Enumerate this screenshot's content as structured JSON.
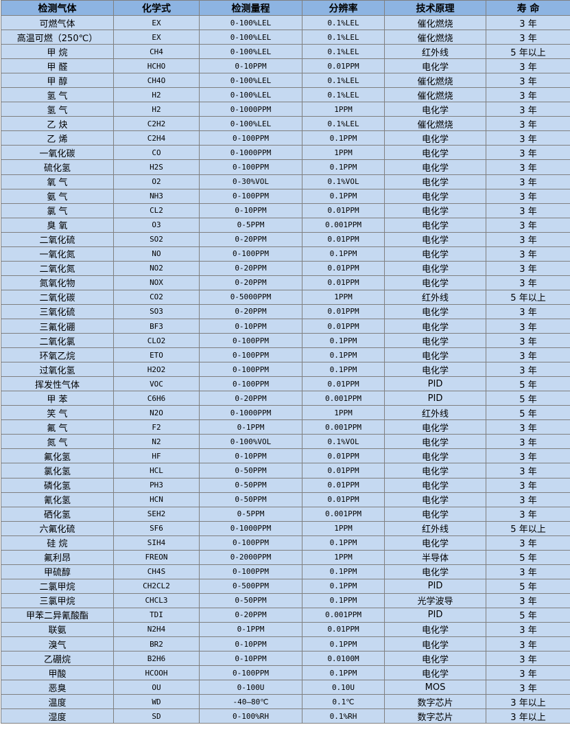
{
  "colors": {
    "header_bg": "#8db4e2",
    "row_bg": "#c5d9f1",
    "border": "#7f7f7f"
  },
  "headers": [
    "检测气体",
    "化学式",
    "检测量程",
    "分辨率",
    "技术原理",
    "寿 命"
  ],
  "rows": [
    [
      "可燃气体",
      "EX",
      "0-100%LEL",
      "0.1%LEL",
      "催化燃烧",
      "3 年"
    ],
    [
      "高温可燃（250℃）",
      "EX",
      "0-100%LEL",
      "0.1%LEL",
      "催化燃烧",
      "3 年"
    ],
    [
      "甲 烷",
      "CH4",
      "0-100%LEL",
      "0.1%LEL",
      "红外线",
      "5 年以上"
    ],
    [
      "甲 醛",
      "HCHO",
      "0-10PPM",
      "0.01PPM",
      "电化学",
      "3 年"
    ],
    [
      "甲 醇",
      "CH4O",
      "0-100%LEL",
      "0.1%LEL",
      "催化燃烧",
      "3 年"
    ],
    [
      "氢 气",
      "H2",
      "0-100%LEL",
      "0.1%LEL",
      "催化燃烧",
      "3 年"
    ],
    [
      "氢 气",
      "H2",
      "0-1000PPM",
      "1PPM",
      "电化学",
      "3 年"
    ],
    [
      "乙 炔",
      "C2H2",
      "0-100%LEL",
      "0.1%LEL",
      "催化燃烧",
      "3 年"
    ],
    [
      "乙 烯",
      "C2H4",
      "0-100PPM",
      "0.1PPM",
      "电化学",
      "3 年"
    ],
    [
      "一氧化碳",
      "CO",
      "0-1000PPM",
      "1PPM",
      "电化学",
      "3 年"
    ],
    [
      "硫化氢",
      "H2S",
      "0-100PPM",
      "0.1PPM",
      "电化学",
      "3 年"
    ],
    [
      "氧 气",
      "O2",
      "0-30%VOL",
      "0.1%VOL",
      "电化学",
      "3 年"
    ],
    [
      "氨 气",
      "NH3",
      "0-100PPM",
      "0.1PPM",
      "电化学",
      "3 年"
    ],
    [
      "氯 气",
      "CL2",
      "0-10PPM",
      "0.01PPM",
      "电化学",
      "3 年"
    ],
    [
      "臭 氧",
      "O3",
      "0-5PPM",
      "0.001PPM",
      "电化学",
      "3 年"
    ],
    [
      "二氧化硫",
      "SO2",
      "0-20PPM",
      "0.01PPM",
      "电化学",
      "3 年"
    ],
    [
      "一氧化氮",
      "NO",
      "0-100PPM",
      "0.1PPM",
      "电化学",
      "3 年"
    ],
    [
      "二氧化氮",
      "NO2",
      "0-20PPM",
      "0.01PPM",
      "电化学",
      "3 年"
    ],
    [
      "氮氧化物",
      "NOX",
      "0-20PPM",
      "0.01PPM",
      "电化学",
      "3 年"
    ],
    [
      "二氧化碳",
      "CO2",
      "0-5000PPM",
      "1PPM",
      "红外线",
      "5 年以上"
    ],
    [
      "三氧化硫",
      "SO3",
      "0-20PPM",
      "0.01PPM",
      "电化学",
      "3 年"
    ],
    [
      "三氟化硼",
      "BF3",
      "0-10PPM",
      "0.01PPM",
      "电化学",
      "3 年"
    ],
    [
      "二氧化氯",
      "CLO2",
      "0-100PPM",
      "0.1PPM",
      "电化学",
      "3 年"
    ],
    [
      "环氧乙烷",
      "ETO",
      "0-100PPM",
      "0.1PPM",
      "电化学",
      "3 年"
    ],
    [
      "过氧化氢",
      "H2O2",
      "0-100PPM",
      "0.1PPM",
      "电化学",
      "3 年"
    ],
    [
      "挥发性气体",
      "VOC",
      "0-100PPM",
      "0.01PPM",
      "PID",
      "5 年"
    ],
    [
      "甲 苯",
      "C6H6",
      "0-20PPM",
      "0.001PPM",
      "PID",
      "5 年"
    ],
    [
      "笑 气",
      "N2O",
      "0-1000PPM",
      "1PPM",
      "红外线",
      "5 年"
    ],
    [
      "氟 气",
      "F2",
      "0-1PPM",
      "0.001PPM",
      "电化学",
      "3 年"
    ],
    [
      "氮 气",
      "N2",
      "0-100%VOL",
      "0.1%VOL",
      "电化学",
      "3 年"
    ],
    [
      "氟化氢",
      "HF",
      "0-10PPM",
      "0.01PPM",
      "电化学",
      "3 年"
    ],
    [
      "氯化氢",
      "HCL",
      "0-50PPM",
      "0.01PPM",
      "电化学",
      "3 年"
    ],
    [
      "磷化氢",
      "PH3",
      "0-50PPM",
      "0.01PPM",
      "电化学",
      "3 年"
    ],
    [
      "氰化氢",
      "HCN",
      "0-50PPM",
      "0.01PPM",
      "电化学",
      "3 年"
    ],
    [
      "硒化氢",
      "SEH2",
      "0-5PPM",
      "0.001PPM",
      "电化学",
      "3 年"
    ],
    [
      "六氟化硫",
      "SF6",
      "0-1000PPM",
      "1PPM",
      "红外线",
      "5 年以上"
    ],
    [
      "硅 烷",
      "SIH4",
      "0-100PPM",
      "0.1PPM",
      "电化学",
      "3 年"
    ],
    [
      "氟利昂",
      "FREON",
      "0-2000PPM",
      "1PPM",
      "半导体",
      "5 年"
    ],
    [
      "甲硫醇",
      "CH4S",
      "0-100PPM",
      "0.1PPM",
      "电化学",
      "3 年"
    ],
    [
      "二氯甲烷",
      "CH2CL2",
      "0-500PPM",
      "0.1PPM",
      "PID",
      "5 年"
    ],
    [
      "三氯甲烷",
      "CHCL3",
      "0-50PPM",
      "0.1PPM",
      "光学波导",
      "3 年"
    ],
    [
      "甲苯二异氰酸酯",
      "TDI",
      "0-20PPM",
      "0.001PPM",
      "PID",
      "5 年"
    ],
    [
      "联氨",
      "N2H4",
      "0-1PPM",
      "0.01PPM",
      "电化学",
      "3 年"
    ],
    [
      "溴气",
      "BR2",
      "0-10PPM",
      "0.1PPM",
      "电化学",
      "3 年"
    ],
    [
      "乙硼烷",
      "B2H6",
      "0-10PPM",
      "0.0100M",
      "电化学",
      "3 年"
    ],
    [
      "甲酸",
      "HCOOH",
      "0-100PPM",
      "0.1PPM",
      "电化学",
      "3 年"
    ],
    [
      "恶臭",
      "OU",
      "0-100U",
      "0.10U",
      "MOS",
      "3 年"
    ],
    [
      "温度",
      "WD",
      "-40—80℃",
      "0.1℃",
      "数字芯片",
      "3 年以上"
    ],
    [
      "湿度",
      "SD",
      "0-100%RH",
      "0.1%RH",
      "数字芯片",
      "3 年以上"
    ]
  ]
}
